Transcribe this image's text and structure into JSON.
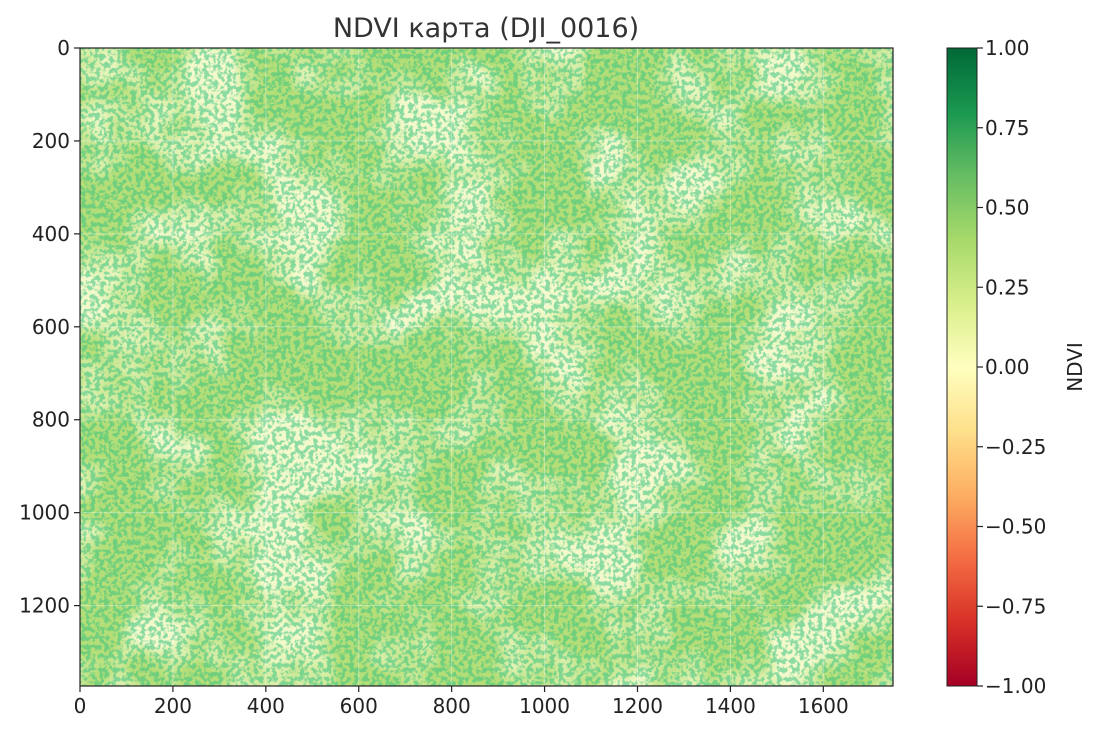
{
  "chart_data": {
    "type": "heatmap",
    "title": "NDVI карта (DJI_0016)",
    "image_width": 1750,
    "image_height": 1373,
    "xlim": [
      0,
      1750
    ],
    "ylim": [
      1373,
      0
    ],
    "x_ticks": [
      0,
      200,
      400,
      600,
      800,
      1000,
      1200,
      1400,
      1600
    ],
    "y_ticks": [
      0,
      200,
      400,
      600,
      800,
      1000,
      1200
    ],
    "grid": true,
    "colormap": "RdYlGn",
    "colormap_stops": [
      "#a50026",
      "#d73027",
      "#f46d43",
      "#fdae61",
      "#fee08b",
      "#ffffbf",
      "#d9ef8b",
      "#a6d96a",
      "#66bd63",
      "#1a9850",
      "#006837"
    ],
    "value_range": [
      -1.0,
      1.0
    ],
    "typical_value_range": [
      0.1,
      0.7
    ],
    "colorbar": {
      "label": "NDVI",
      "ticks": [
        1.0,
        0.75,
        0.5,
        0.25,
        0.0,
        -0.25,
        -0.5,
        -0.75,
        -1.0
      ],
      "tick_labels": [
        "1.00",
        "0.75",
        "0.50",
        "0.25",
        "0.00",
        "−0.25",
        "−0.50",
        "−0.75",
        "−1.00"
      ]
    }
  }
}
